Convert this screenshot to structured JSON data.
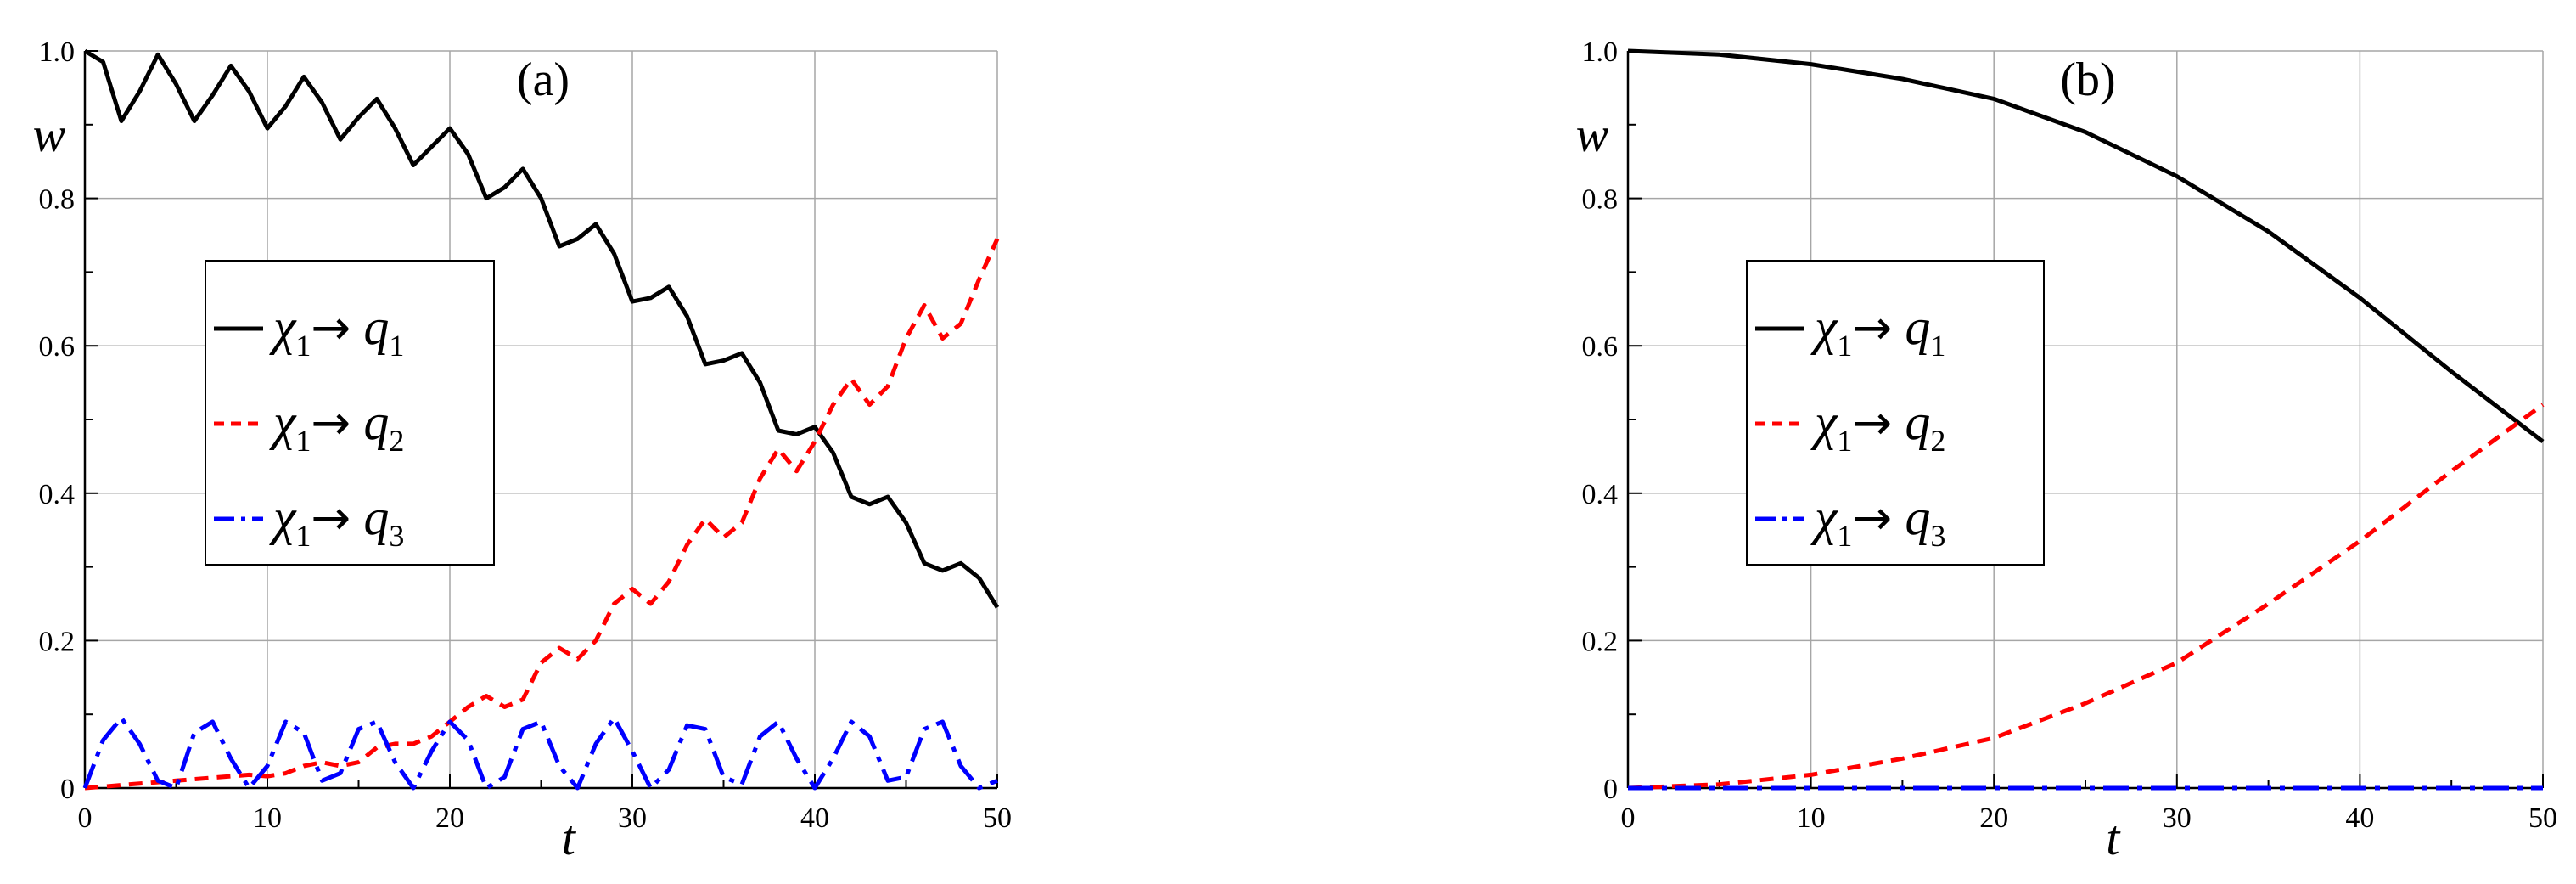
{
  "chart_data": [
    {
      "type": "line",
      "panel_label": "(a)",
      "xlabel": "t",
      "ylabel": "w",
      "xlim": [
        0,
        50
      ],
      "ylim": [
        0,
        1.0
      ],
      "xticks": [
        0,
        10,
        20,
        30,
        40,
        50
      ],
      "xtick_labels": [
        "0",
        "10",
        "20",
        "30",
        "40",
        "50"
      ],
      "yticks": [
        0,
        0.2,
        0.4,
        0.6,
        0.8,
        1.0
      ],
      "ytick_labels": [
        "0",
        "0.2",
        "0.4",
        "0.6",
        "0.8",
        "1.0"
      ],
      "grid": true,
      "legend_position": "middle-left",
      "legend": [
        {
          "letter": "χ",
          "sub": "1",
          "arrow": "→",
          "target": "q",
          "target_sub": "1"
        },
        {
          "letter": "χ",
          "sub": "1",
          "arrow": "→",
          "target": "q",
          "target_sub": "2"
        },
        {
          "letter": "χ",
          "sub": "1",
          "arrow": "→",
          "target": "q",
          "target_sub": "3"
        }
      ],
      "series": [
        {
          "style": "solid",
          "color": "#000000",
          "x": [
            0,
            1,
            2,
            3,
            4,
            5,
            6,
            7,
            8,
            9,
            10,
            11,
            12,
            13,
            14,
            15,
            16,
            17,
            18,
            19,
            20,
            21,
            22,
            23,
            24,
            25,
            26,
            27,
            28,
            29,
            30,
            31,
            32,
            33,
            34,
            35,
            36,
            37,
            38,
            39,
            40,
            41,
            42,
            43,
            44,
            45,
            46,
            47,
            48,
            49,
            50
          ],
          "y": [
            1.0,
            0.985,
            0.905,
            0.945,
            0.995,
            0.955,
            0.905,
            0.94,
            0.98,
            0.945,
            0.895,
            0.925,
            0.965,
            0.93,
            0.88,
            0.91,
            0.935,
            0.895,
            0.845,
            0.87,
            0.895,
            0.86,
            0.8,
            0.815,
            0.84,
            0.8,
            0.735,
            0.745,
            0.765,
            0.725,
            0.66,
            0.665,
            0.68,
            0.64,
            0.575,
            0.58,
            0.59,
            0.55,
            0.485,
            0.48,
            0.49,
            0.455,
            0.395,
            0.385,
            0.395,
            0.36,
            0.305,
            0.295,
            0.305,
            0.285,
            0.245
          ]
        },
        {
          "style": "dashed",
          "color": "#ff0000",
          "x": [
            0,
            1,
            2,
            3,
            4,
            5,
            6,
            7,
            8,
            9,
            10,
            11,
            12,
            13,
            14,
            15,
            16,
            17,
            18,
            19,
            20,
            21,
            22,
            23,
            24,
            25,
            26,
            27,
            28,
            29,
            30,
            31,
            32,
            33,
            34,
            35,
            36,
            37,
            38,
            39,
            40,
            41,
            42,
            43,
            44,
            45,
            46,
            47,
            48,
            49,
            50
          ],
          "y": [
            0.0,
            0.002,
            0.004,
            0.006,
            0.008,
            0.01,
            0.012,
            0.014,
            0.016,
            0.018,
            0.016,
            0.02,
            0.03,
            0.035,
            0.03,
            0.035,
            0.055,
            0.06,
            0.06,
            0.07,
            0.09,
            0.11,
            0.125,
            0.11,
            0.12,
            0.17,
            0.19,
            0.175,
            0.2,
            0.25,
            0.27,
            0.25,
            0.28,
            0.33,
            0.365,
            0.34,
            0.36,
            0.42,
            0.46,
            0.43,
            0.47,
            0.52,
            0.555,
            0.52,
            0.545,
            0.61,
            0.655,
            0.61,
            0.63,
            0.69,
            0.745
          ]
        },
        {
          "style": "dashdot",
          "color": "#0000ff",
          "x": [
            0,
            1,
            2,
            3,
            4,
            5,
            6,
            7,
            8,
            9,
            10,
            11,
            12,
            13,
            14,
            15,
            16,
            17,
            18,
            19,
            20,
            21,
            22,
            23,
            24,
            25,
            26,
            27,
            28,
            29,
            30,
            31,
            32,
            33,
            34,
            35,
            36,
            37,
            38,
            39,
            40,
            41,
            42,
            43,
            44,
            45,
            46,
            47,
            48,
            49,
            50
          ],
          "y": [
            0.0,
            0.065,
            0.095,
            0.06,
            0.01,
            0.0,
            0.075,
            0.09,
            0.04,
            0.0,
            0.03,
            0.09,
            0.075,
            0.01,
            0.02,
            0.08,
            0.09,
            0.035,
            0.0,
            0.05,
            0.09,
            0.065,
            0.0,
            0.015,
            0.08,
            0.09,
            0.03,
            0.0,
            0.06,
            0.095,
            0.05,
            0.0,
            0.025,
            0.085,
            0.08,
            0.015,
            0.005,
            0.07,
            0.09,
            0.04,
            0.0,
            0.04,
            0.09,
            0.07,
            0.01,
            0.015,
            0.08,
            0.09,
            0.03,
            0.0,
            0.01
          ]
        }
      ]
    },
    {
      "type": "line",
      "panel_label": "(b)",
      "xlabel": "t",
      "ylabel": "w",
      "xlim": [
        0,
        50
      ],
      "ylim": [
        0,
        1.0
      ],
      "xticks": [
        0,
        10,
        20,
        30,
        40,
        50
      ],
      "xtick_labels": [
        "0",
        "10",
        "20",
        "30",
        "40",
        "50"
      ],
      "yticks": [
        0,
        0.2,
        0.4,
        0.6,
        0.8,
        1.0
      ],
      "ytick_labels": [
        "0",
        "0.2",
        "0.4",
        "0.6",
        "0.8",
        "1.0"
      ],
      "grid": true,
      "legend_position": "middle-left",
      "legend": [
        {
          "letter": "χ",
          "sub": "1",
          "arrow": "→",
          "target": "q",
          "target_sub": "1"
        },
        {
          "letter": "χ",
          "sub": "1",
          "arrow": "→",
          "target": "q",
          "target_sub": "2"
        },
        {
          "letter": "χ",
          "sub": "1",
          "arrow": "→",
          "target": "q",
          "target_sub": "3"
        }
      ],
      "series": [
        {
          "style": "solid",
          "color": "#000000",
          "x": [
            0,
            5,
            10,
            15,
            20,
            25,
            30,
            35,
            40,
            45,
            50
          ],
          "y": [
            1.0,
            0.995,
            0.982,
            0.962,
            0.935,
            0.89,
            0.83,
            0.755,
            0.665,
            0.565,
            0.47
          ]
        },
        {
          "style": "dashed",
          "color": "#ff0000",
          "x": [
            0,
            5,
            10,
            15,
            20,
            25,
            30,
            35,
            40,
            45,
            50
          ],
          "y": [
            0.0,
            0.005,
            0.018,
            0.04,
            0.068,
            0.115,
            0.17,
            0.25,
            0.335,
            0.43,
            0.52
          ]
        },
        {
          "style": "dashdot",
          "color": "#0000ff",
          "x": [
            0,
            10,
            20,
            30,
            40,
            50
          ],
          "y": [
            0.0,
            0.0,
            0.0,
            0.0,
            0.0,
            0.0
          ]
        }
      ]
    }
  ]
}
